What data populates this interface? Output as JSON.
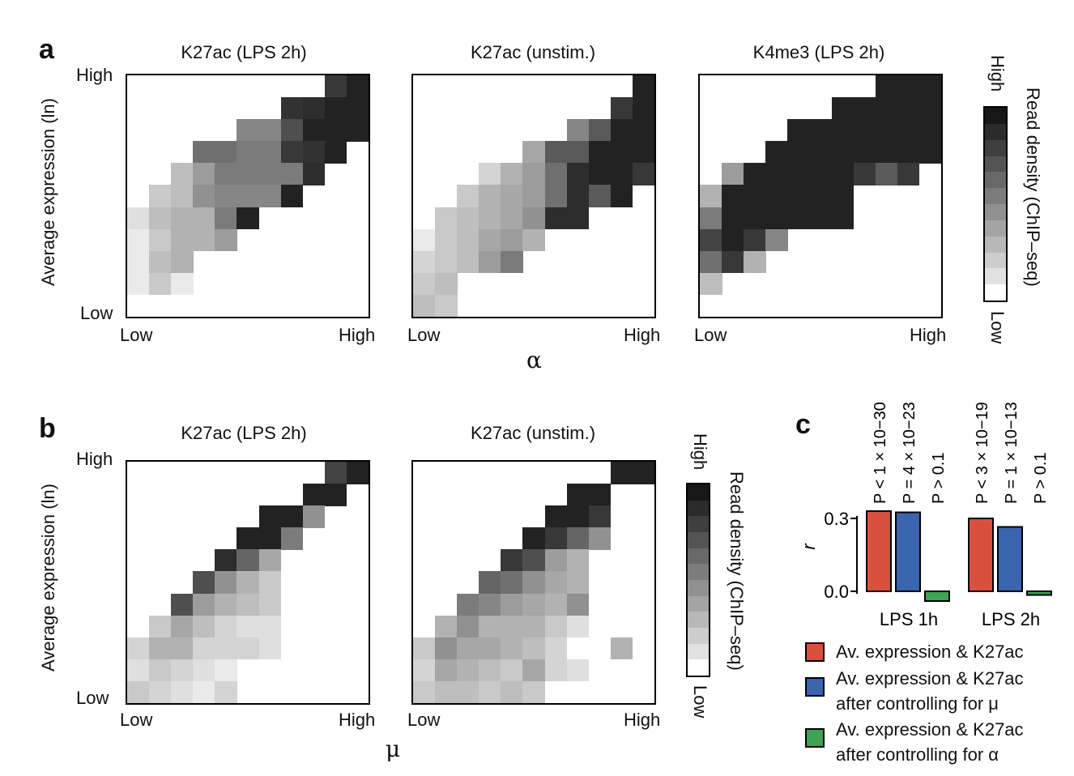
{
  "panels": {
    "a": {
      "letter": "a",
      "xaxis_label": "α",
      "yaxis_label": "Average expression (ln)",
      "y_high": "High",
      "y_low": "Low",
      "x_low": "Low",
      "x_high": "High",
      "colorbar": {
        "title": "Read density (ChIP–seq)",
        "high": "High",
        "low": "Low"
      }
    },
    "b": {
      "letter": "b",
      "xaxis_label": "μ",
      "yaxis_label": "Average expression (ln)",
      "y_high": "High",
      "y_low": "Low",
      "x_low": "Low",
      "x_high": "High",
      "colorbar": {
        "title": "Read density (ChIP–seq)",
        "high": "High",
        "low": "Low"
      }
    },
    "c": {
      "letter": "c",
      "ylabel": "r",
      "y_ticks": [
        "0.3",
        "0.0"
      ],
      "groups": [
        "LPS 1h",
        "LPS 2h"
      ],
      "pvalues": [
        "P < 1 × 10−30",
        "P = 4 × 10−23",
        "P > 0.1",
        "P < 3 × 10−19",
        "P = 1 × 10−13",
        "P > 0.1"
      ],
      "legend": [
        {
          "label": "Av. expression & K27ac",
          "color": "#d9513e"
        },
        {
          "label": "Av. expression & K27ac\nafter controlling for μ",
          "color": "#3a64ad"
        },
        {
          "label": "Av. expression & K27ac\nafter controlling for α",
          "color": "#3ea353"
        }
      ]
    }
  },
  "chart_data": [
    {
      "type": "heatmap",
      "panel": "a",
      "title": "K27ac (LPS 2h)",
      "xlabel": "α",
      "ylabel": "Average expression (ln)",
      "note": "values 0 (Low) to 1 (High) read density; grid 11 columns x 11 rows, row 0 = top (High expression); null = no data",
      "z": [
        [
          null,
          null,
          null,
          null,
          null,
          null,
          null,
          null,
          null,
          0.85,
          0.95
        ],
        [
          null,
          null,
          null,
          null,
          null,
          null,
          null,
          0.88,
          0.9,
          0.95,
          0.95
        ],
        [
          null,
          null,
          null,
          null,
          null,
          0.5,
          0.5,
          0.75,
          0.95,
          0.95,
          0.95
        ],
        [
          null,
          null,
          null,
          0.6,
          0.6,
          0.55,
          0.55,
          0.85,
          0.88,
          0.95,
          null
        ],
        [
          null,
          null,
          0.25,
          0.4,
          0.55,
          0.55,
          0.55,
          0.55,
          0.9,
          null,
          null
        ],
        [
          null,
          0.2,
          0.25,
          0.45,
          0.5,
          0.5,
          0.5,
          0.95,
          null,
          null,
          null
        ],
        [
          0.1,
          0.25,
          0.3,
          0.3,
          0.55,
          0.95,
          null,
          null,
          null,
          null,
          null
        ],
        [
          0.05,
          0.2,
          0.3,
          0.3,
          0.4,
          null,
          null,
          null,
          null,
          null,
          null
        ],
        [
          0.05,
          0.25,
          0.3,
          null,
          null,
          null,
          null,
          null,
          null,
          null,
          null
        ],
        [
          0.05,
          0.2,
          0.05,
          null,
          null,
          null,
          null,
          null,
          null,
          null,
          null
        ],
        [
          null,
          null,
          null,
          null,
          null,
          null,
          null,
          null,
          null,
          null,
          null
        ]
      ]
    },
    {
      "type": "heatmap",
      "panel": "a",
      "title": "K27ac (unstim.)",
      "xlabel": "α",
      "ylabel": "Average expression (ln)",
      "z": [
        [
          null,
          null,
          null,
          null,
          null,
          null,
          null,
          null,
          null,
          null,
          0.95
        ],
        [
          null,
          null,
          null,
          null,
          null,
          null,
          null,
          null,
          null,
          0.85,
          0.95
        ],
        [
          null,
          null,
          null,
          null,
          null,
          null,
          null,
          0.5,
          0.7,
          0.95,
          0.95
        ],
        [
          null,
          null,
          null,
          null,
          null,
          0.35,
          0.7,
          0.7,
          0.95,
          0.95,
          0.95
        ],
        [
          null,
          null,
          null,
          0.15,
          0.3,
          0.4,
          0.6,
          0.9,
          0.95,
          0.95,
          0.85
        ],
        [
          null,
          null,
          0.2,
          0.3,
          0.35,
          0.4,
          0.6,
          0.9,
          0.7,
          0.95,
          null
        ],
        [
          null,
          0.2,
          0.25,
          0.3,
          0.35,
          0.45,
          0.9,
          0.9,
          null,
          null,
          null
        ],
        [
          0.05,
          0.2,
          0.25,
          0.35,
          0.4,
          0.3,
          null,
          null,
          null,
          null,
          null
        ],
        [
          0.15,
          0.2,
          0.25,
          0.4,
          0.55,
          null,
          null,
          null,
          null,
          null,
          null
        ],
        [
          0.2,
          0.25,
          null,
          null,
          null,
          null,
          null,
          null,
          null,
          null,
          null
        ],
        [
          0.25,
          0.2,
          null,
          null,
          null,
          null,
          null,
          null,
          null,
          null,
          null
        ]
      ]
    },
    {
      "type": "heatmap",
      "panel": "a",
      "title": "K4me3 (LPS 2h)",
      "xlabel": "α",
      "ylabel": "Average expression (ln)",
      "z": [
        [
          null,
          null,
          null,
          null,
          null,
          null,
          null,
          null,
          0.95,
          0.95,
          0.95
        ],
        [
          null,
          null,
          null,
          null,
          null,
          null,
          0.95,
          0.95,
          0.95,
          0.95,
          0.95
        ],
        [
          null,
          null,
          null,
          null,
          0.95,
          0.95,
          0.95,
          0.95,
          0.95,
          0.95,
          0.95
        ],
        [
          null,
          null,
          null,
          0.95,
          0.95,
          0.95,
          0.95,
          0.95,
          0.95,
          0.95,
          0.95
        ],
        [
          null,
          0.4,
          0.95,
          0.95,
          0.95,
          0.95,
          0.95,
          0.85,
          0.7,
          0.85,
          null
        ],
        [
          0.3,
          0.95,
          0.95,
          0.95,
          0.95,
          0.95,
          0.95,
          null,
          null,
          null,
          null
        ],
        [
          0.55,
          0.95,
          0.95,
          0.95,
          0.95,
          0.95,
          0.95,
          null,
          null,
          null,
          null
        ],
        [
          0.8,
          0.95,
          0.85,
          0.5,
          null,
          null,
          null,
          null,
          null,
          null,
          null
        ],
        [
          0.6,
          0.85,
          0.3,
          null,
          null,
          null,
          null,
          null,
          null,
          null,
          null
        ],
        [
          0.25,
          null,
          null,
          null,
          null,
          null,
          null,
          null,
          null,
          null,
          null
        ],
        [
          null,
          null,
          null,
          null,
          null,
          null,
          null,
          null,
          null,
          null,
          null
        ]
      ]
    },
    {
      "type": "heatmap",
      "panel": "b",
      "title": "K27ac (LPS 2h)",
      "xlabel": "μ",
      "ylabel": "Average expression (ln)",
      "z": [
        [
          null,
          null,
          null,
          null,
          null,
          null,
          null,
          null,
          null,
          0.8,
          0.95
        ],
        [
          null,
          null,
          null,
          null,
          null,
          null,
          null,
          null,
          0.95,
          0.95,
          null
        ],
        [
          null,
          null,
          null,
          null,
          null,
          null,
          0.95,
          0.95,
          0.45,
          null,
          null
        ],
        [
          null,
          null,
          null,
          null,
          null,
          0.95,
          0.95,
          0.55,
          null,
          null,
          null
        ],
        [
          null,
          null,
          null,
          null,
          0.9,
          0.65,
          0.35,
          null,
          null,
          null,
          null
        ],
        [
          null,
          null,
          null,
          0.75,
          0.45,
          0.3,
          0.2,
          null,
          null,
          null,
          null
        ],
        [
          null,
          null,
          0.75,
          0.4,
          0.3,
          0.25,
          0.2,
          null,
          null,
          null,
          null
        ],
        [
          null,
          0.2,
          0.35,
          0.25,
          0.15,
          0.1,
          0.1,
          null,
          null,
          null,
          null
        ],
        [
          0.15,
          0.3,
          0.3,
          0.15,
          0.15,
          0.15,
          0.1,
          null,
          null,
          null,
          null
        ],
        [
          0.1,
          0.2,
          0.15,
          0.1,
          0.05,
          null,
          null,
          null,
          null,
          null,
          null
        ],
        [
          0.2,
          0.15,
          0.1,
          0.05,
          0.15,
          null,
          null,
          null,
          null,
          null,
          null
        ]
      ]
    },
    {
      "type": "heatmap",
      "panel": "b",
      "title": "K27ac (unstim.)",
      "xlabel": "μ",
      "ylabel": "Average expression (ln)",
      "z": [
        [
          null,
          null,
          null,
          null,
          null,
          null,
          null,
          null,
          null,
          0.95,
          0.95
        ],
        [
          null,
          null,
          null,
          null,
          null,
          null,
          null,
          0.95,
          0.95,
          null,
          null
        ],
        [
          null,
          null,
          null,
          null,
          null,
          null,
          0.95,
          0.95,
          0.85,
          null,
          null
        ],
        [
          null,
          null,
          null,
          null,
          null,
          0.95,
          0.85,
          0.65,
          0.45,
          null,
          null
        ],
        [
          null,
          null,
          null,
          null,
          0.85,
          0.75,
          0.4,
          0.3,
          null,
          null,
          null
        ],
        [
          null,
          null,
          null,
          0.65,
          0.6,
          0.45,
          0.35,
          0.3,
          null,
          null,
          null
        ],
        [
          null,
          null,
          0.55,
          0.5,
          0.4,
          0.35,
          0.3,
          0.45,
          null,
          null,
          null
        ],
        [
          null,
          0.3,
          0.45,
          0.3,
          0.3,
          0.3,
          0.2,
          0.1,
          null,
          null,
          null
        ],
        [
          0.2,
          0.45,
          0.35,
          0.35,
          0.3,
          0.25,
          0.15,
          null,
          null,
          0.3,
          null
        ],
        [
          0.15,
          0.35,
          0.3,
          0.25,
          0.2,
          0.35,
          0.15,
          0.1,
          null,
          null,
          null
        ],
        [
          0.2,
          0.25,
          0.25,
          0.2,
          0.25,
          0.2,
          null,
          null,
          null,
          null,
          null
        ]
      ]
    },
    {
      "type": "bar",
      "panel": "c",
      "categories": [
        "LPS 1h",
        "LPS 2h"
      ],
      "ylabel": "r",
      "ylim": [
        -0.05,
        0.35
      ],
      "series": [
        {
          "name": "Av. expression & K27ac",
          "values": [
            0.33,
            0.3
          ]
        },
        {
          "name": "Av. expression & K27ac after controlling for μ",
          "values": [
            0.325,
            0.265
          ]
        },
        {
          "name": "Av. expression & K27ac after controlling for α",
          "values": [
            -0.04,
            -0.015
          ]
        }
      ]
    }
  ]
}
